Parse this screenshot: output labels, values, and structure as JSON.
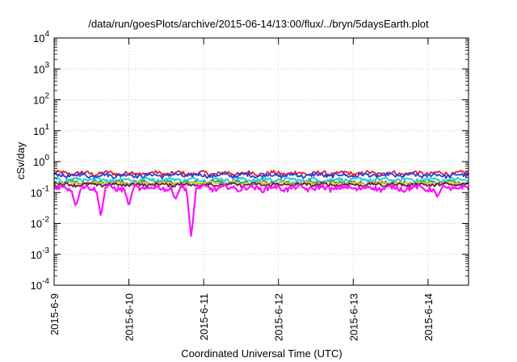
{
  "chart_data": {
    "type": "line",
    "title": "/data/run/goesPlots/archive/2015-06-14/13:00/flux/../bryn/5daysEarth.plot",
    "xlabel": "Coordinated Universal Time (UTC)",
    "ylabel": "cSv/day",
    "yscale": "log",
    "ylim": [
      0.0001,
      10000
    ],
    "xlim": [
      "2015-06-09 00:00",
      "2015-06-14 13:00"
    ],
    "x_ticks": [
      "2015-6-9",
      "2015-6-10",
      "2015-6-11",
      "2015-6-12",
      "2015-6-13",
      "2015-6-14"
    ],
    "y_ticks": [
      {
        "base": "10",
        "exp": "-4",
        "value": 0.0001
      },
      {
        "base": "10",
        "exp": "-3",
        "value": 0.001
      },
      {
        "base": "10",
        "exp": "-2",
        "value": 0.01
      },
      {
        "base": "10",
        "exp": "-1",
        "value": 0.1
      },
      {
        "base": "10",
        "exp": "0",
        "value": 1
      },
      {
        "base": "10",
        "exp": "1",
        "value": 10
      },
      {
        "base": "10",
        "exp": "2",
        "value": 100
      },
      {
        "base": "10",
        "exp": "3",
        "value": 1000
      },
      {
        "base": "10",
        "exp": "4",
        "value": 10000
      }
    ],
    "grid": true,
    "series": [
      {
        "color": "#e0202a",
        "base": 0.42,
        "amp": 0.12,
        "dips": []
      },
      {
        "color": "#2a3fd8",
        "base": 0.36,
        "amp": 0.1,
        "dips": []
      },
      {
        "color": "#18c8e0",
        "base": 0.26,
        "amp": 0.07,
        "dips": []
      },
      {
        "color": "#20a050",
        "base": 0.21,
        "amp": 0.05,
        "dips": []
      },
      {
        "color": "#e8c020",
        "base": 0.2,
        "amp": 0.04,
        "dips": []
      },
      {
        "color": "#6a1a5a",
        "base": 0.18,
        "amp": 0.04,
        "dips": []
      },
      {
        "color": "#ff10ff",
        "base": 0.14,
        "amp": 0.05,
        "dips": [
          {
            "at": "2015-06-09 07:00",
            "min": 0.035
          },
          {
            "at": "2015-06-09 15:00",
            "min": 0.017
          },
          {
            "at": "2015-06-10 00:00",
            "min": 0.035
          },
          {
            "at": "2015-06-10 15:00",
            "min": 0.06
          },
          {
            "at": "2015-06-10 20:00",
            "min": 0.0033
          },
          {
            "at": "2015-06-14 03:00",
            "min": 0.07
          }
        ]
      }
    ]
  }
}
